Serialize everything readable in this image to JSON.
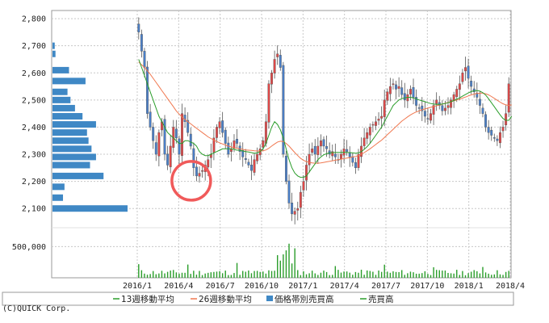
{
  "chart_data": {
    "type": "candlestick",
    "y_ticks": [
      2100,
      2200,
      2300,
      2400,
      2500,
      2600,
      2700,
      2800
    ],
    "y_tick_labels": [
      "2,100",
      "2,200",
      "2,300",
      "2,400",
      "2,500",
      "2,600",
      "2,700",
      "2,800"
    ],
    "ylim": [
      2050,
      2830
    ],
    "volume_tick_label": "500,000",
    "volume_tick_value": 500000,
    "volume_max": 700000,
    "x_labels": [
      "2016/1",
      "2016/4",
      "2016/7",
      "2016/10",
      "2017/1",
      "2017/4",
      "2017/7",
      "2017/10",
      "2018/1",
      "2018/4"
    ],
    "weekly_close": [
      2750,
      2680,
      2620,
      2450,
      2400,
      2350,
      2300,
      2380,
      2420,
      2300,
      2260,
      2330,
      2400,
      2360,
      2300,
      2450,
      2420,
      2380,
      2330,
      2250,
      2220,
      2230,
      2240,
      2260,
      2280,
      2300,
      2360,
      2400,
      2420,
      2380,
      2340,
      2300,
      2320,
      2350,
      2340,
      2310,
      2290,
      2280,
      2260,
      2240,
      2280,
      2300,
      2320,
      2350,
      2420,
      2560,
      2600,
      2650,
      2670,
      2620,
      2300,
      2200,
      2120,
      2080,
      2090,
      2100,
      2160,
      2200,
      2260,
      2300,
      2320,
      2300,
      2330,
      2350,
      2330,
      2320,
      2300,
      2310,
      2290,
      2280,
      2300,
      2320,
      2310,
      2290,
      2270,
      2250,
      2300,
      2330,
      2360,
      2380,
      2400,
      2410,
      2420,
      2430,
      2440,
      2500,
      2530,
      2550,
      2560,
      2540,
      2550,
      2520,
      2500,
      2520,
      2540,
      2510,
      2480,
      2470,
      2460,
      2440,
      2430,
      2450,
      2480,
      2500,
      2480,
      2460,
      2470,
      2480,
      2500,
      2520,
      2540,
      2560,
      2600,
      2620,
      2580,
      2550,
      2530,
      2510,
      2480,
      2450,
      2400,
      2380,
      2370,
      2360,
      2350,
      2380,
      2400,
      2450,
      2560
    ],
    "ma13": [
      2650,
      2620,
      2590,
      2560,
      2530,
      2500,
      2470,
      2440,
      2420,
      2400,
      2380,
      2370,
      2360,
      2350,
      2340,
      2340,
      2350,
      2350,
      2345,
      2340,
      2330,
      2310,
      2300,
      2295,
      2295,
      2300,
      2305,
      2310,
      2315,
      2320,
      2320,
      2320,
      2320,
      2318,
      2315,
      2315,
      2312,
      2310,
      2308,
      2306,
      2304,
      2305,
      2310,
      2320,
      2340,
      2370,
      2400,
      2420,
      2410,
      2390,
      2360,
      2320,
      2280,
      2250,
      2230,
      2220,
      2215,
      2215,
      2220,
      2235,
      2250,
      2265,
      2280,
      2290,
      2298,
      2302,
      2305,
      2306,
      2307,
      2307,
      2307,
      2307,
      2307,
      2306,
      2305,
      2304,
      2305,
      2310,
      2318,
      2328,
      2340,
      2355,
      2370,
      2385,
      2400,
      2420,
      2440,
      2460,
      2480,
      2490,
      2500,
      2505,
      2508,
      2510,
      2510,
      2508,
      2504,
      2500,
      2497,
      2494,
      2490,
      2487,
      2485,
      2484,
      2484,
      2485,
      2487,
      2490,
      2494,
      2498,
      2503,
      2508,
      2514,
      2520,
      2526,
      2531,
      2534,
      2535,
      2533,
      2527,
      2518,
      2505,
      2490,
      2475,
      2460,
      2445,
      2432,
      2425,
      2425,
      2440
    ],
    "ma26": [
      2640,
      2630,
      2620,
      2608,
      2595,
      2580,
      2565,
      2550,
      2535,
      2520,
      2505,
      2490,
      2475,
      2460,
      2448,
      2437,
      2428,
      2420,
      2412,
      2404,
      2396,
      2388,
      2380,
      2372,
      2364,
      2358,
      2352,
      2347,
      2342,
      2338,
      2334,
      2330,
      2327,
      2324,
      2322,
      2320,
      2318,
      2316,
      2315,
      2314,
      2313,
      2312,
      2312,
      2313,
      2316,
      2322,
      2330,
      2338,
      2345,
      2348,
      2347,
      2340,
      2330,
      2318,
      2306,
      2295,
      2285,
      2278,
      2273,
      2270,
      2268,
      2267,
      2267,
      2268,
      2270,
      2272,
      2274,
      2276,
      2278,
      2280,
      2282,
      2284,
      2286,
      2288,
      2290,
      2292,
      2295,
      2300,
      2306,
      2313,
      2320,
      2328,
      2336,
      2344,
      2352,
      2362,
      2372,
      2382,
      2392,
      2402,
      2412,
      2422,
      2430,
      2438,
      2445,
      2451,
      2456,
      2460,
      2464,
      2467,
      2470,
      2473,
      2476,
      2479,
      2482,
      2485,
      2488,
      2491,
      2494,
      2497,
      2500,
      2503,
      2507,
      2511,
      2515,
      2519,
      2522,
      2524,
      2525,
      2525,
      2523,
      2519,
      2513,
      2506,
      2499,
      2492,
      2486,
      2482,
      2480,
      2482
    ],
    "volume_profile": [
      {
        "price": 2100,
        "value": 100
      },
      {
        "price": 2140,
        "value": 14
      },
      {
        "price": 2180,
        "value": 16
      },
      {
        "price": 2220,
        "value": 68
      },
      {
        "price": 2260,
        "value": 50
      },
      {
        "price": 2290,
        "value": 58
      },
      {
        "price": 2320,
        "value": 52
      },
      {
        "price": 2350,
        "value": 48
      },
      {
        "price": 2380,
        "value": 46
      },
      {
        "price": 2410,
        "value": 58
      },
      {
        "price": 2440,
        "value": 40
      },
      {
        "price": 2470,
        "value": 30
      },
      {
        "price": 2500,
        "value": 24
      },
      {
        "price": 2530,
        "value": 20
      },
      {
        "price": 2570,
        "value": 44
      },
      {
        "price": 2610,
        "value": 22
      },
      {
        "price": 2670,
        "value": 4
      },
      {
        "price": 2700,
        "value": 3
      }
    ],
    "legend": [
      {
        "label": "13週移動平均",
        "color": "#2a9d2a"
      },
      {
        "label": "26週移動平均",
        "color": "#f07850"
      },
      {
        "label": "価格帯別売買高",
        "color": "#3f88c5"
      },
      {
        "label": "売買高",
        "color": "#2a9d2a"
      }
    ],
    "copyright": "(C)QUICK Corp.",
    "colors": {
      "up": "#e04848",
      "down": "#4a7fc8",
      "ma13": "#2a9d2a",
      "ma26": "#f07850",
      "profile": "#3f88c5",
      "volume": "#2a9d2a",
      "grid": "#c8c8c8",
      "highlight": "#f05a5a"
    },
    "highlight": {
      "x": "2016/5",
      "price": 2220
    }
  }
}
